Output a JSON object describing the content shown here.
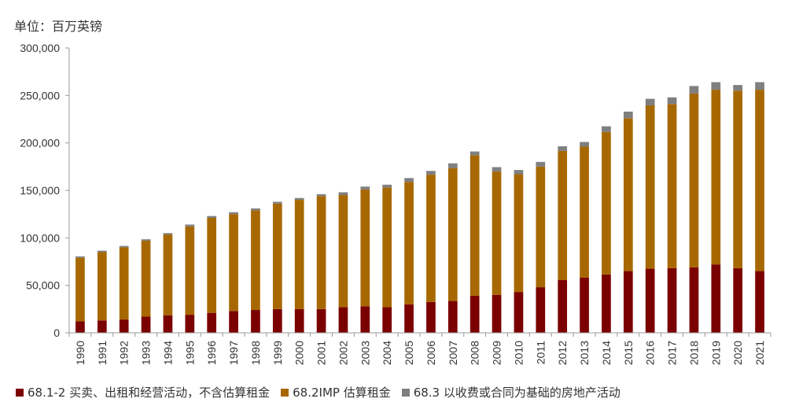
{
  "unit_label": "单位：百万英镑",
  "chart_data": {
    "type": "bar",
    "stacked": true,
    "categories": [
      "1990",
      "1991",
      "1992",
      "1993",
      "1994",
      "1995",
      "1996",
      "1997",
      "1998",
      "1999",
      "2000",
      "2001",
      "2002",
      "2003",
      "2004",
      "2005",
      "2006",
      "2007",
      "2008",
      "2009",
      "2010",
      "2011",
      "2012",
      "2013",
      "2014",
      "2015",
      "2016",
      "2017",
      "2018",
      "2019",
      "2020",
      "2021"
    ],
    "series": [
      {
        "name": "68.1-2 买卖、出租和经营活动，不含估算租金",
        "color": "#7b0000",
        "values": [
          12000,
          13000,
          14000,
          17000,
          18500,
          19000,
          21000,
          23000,
          24000,
          25000,
          25000,
          25000,
          27000,
          28000,
          27000,
          30000,
          32500,
          33500,
          39000,
          40000,
          43000,
          48000,
          55500,
          58000,
          61500,
          65000,
          67500,
          68000,
          69000,
          72000,
          68000,
          65000
        ]
      },
      {
        "name": "68.2IMP 估算租金",
        "color": "#a86800",
        "values": [
          67000,
          72000,
          76000,
          80000,
          85000,
          93000,
          100000,
          102000,
          105000,
          111000,
          115000,
          119000,
          118000,
          123000,
          126000,
          129000,
          134000,
          140000,
          148000,
          130000,
          124000,
          127000,
          136000,
          138000,
          150000,
          161000,
          172000,
          173000,
          183000,
          184000,
          187000,
          191000
        ]
      },
      {
        "name": "68.3 以收费或合同为基础的房地产活动",
        "color": "#7f7f7f",
        "values": [
          1500,
          1500,
          1500,
          1500,
          1500,
          2000,
          2000,
          2000,
          2000,
          2000,
          2000,
          2000,
          3000,
          3000,
          3000,
          4000,
          4000,
          5000,
          4000,
          4500,
          4500,
          5000,
          5000,
          5000,
          6000,
          7000,
          7000,
          7000,
          8000,
          8000,
          6000,
          8000
        ]
      }
    ],
    "y_ticks": [
      "0",
      "50,000",
      "100,000",
      "150,000",
      "200,000",
      "250,000",
      "300,000"
    ],
    "ylim": [
      0,
      300000
    ],
    "grid": false,
    "legend_position": "bottom"
  }
}
